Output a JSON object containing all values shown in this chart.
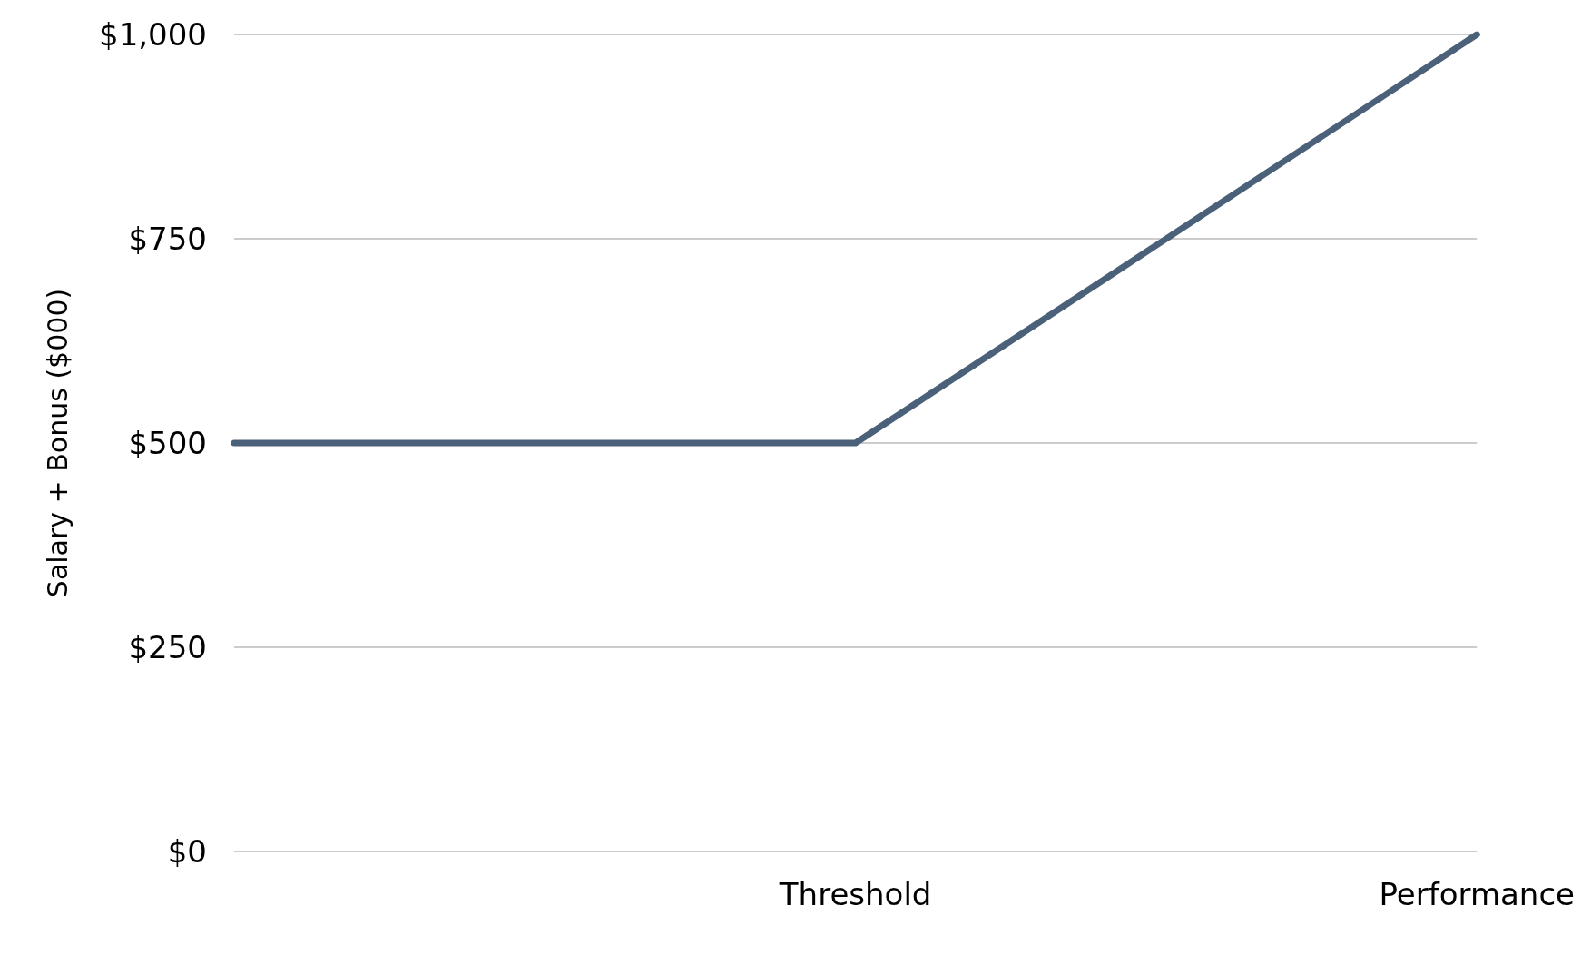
{
  "chart_data": {
    "type": "line",
    "ylabel": "Salary + Bonus ($000)",
    "categories": [
      null,
      "Threshold",
      "Performance"
    ],
    "series": [
      {
        "color": "#4a6179",
        "values": [
          500,
          500,
          1000
        ]
      }
    ],
    "ylim": [
      0,
      1000
    ],
    "yticks": [
      {
        "value": 0,
        "label": "$0"
      },
      {
        "value": 250,
        "label": "$250"
      },
      {
        "value": 500,
        "label": "$500"
      },
      {
        "value": 750,
        "label": "$750"
      },
      {
        "value": 1000,
        "label": "$1,000"
      }
    ],
    "grid": "y",
    "marker": "none",
    "line_style": "solid"
  }
}
